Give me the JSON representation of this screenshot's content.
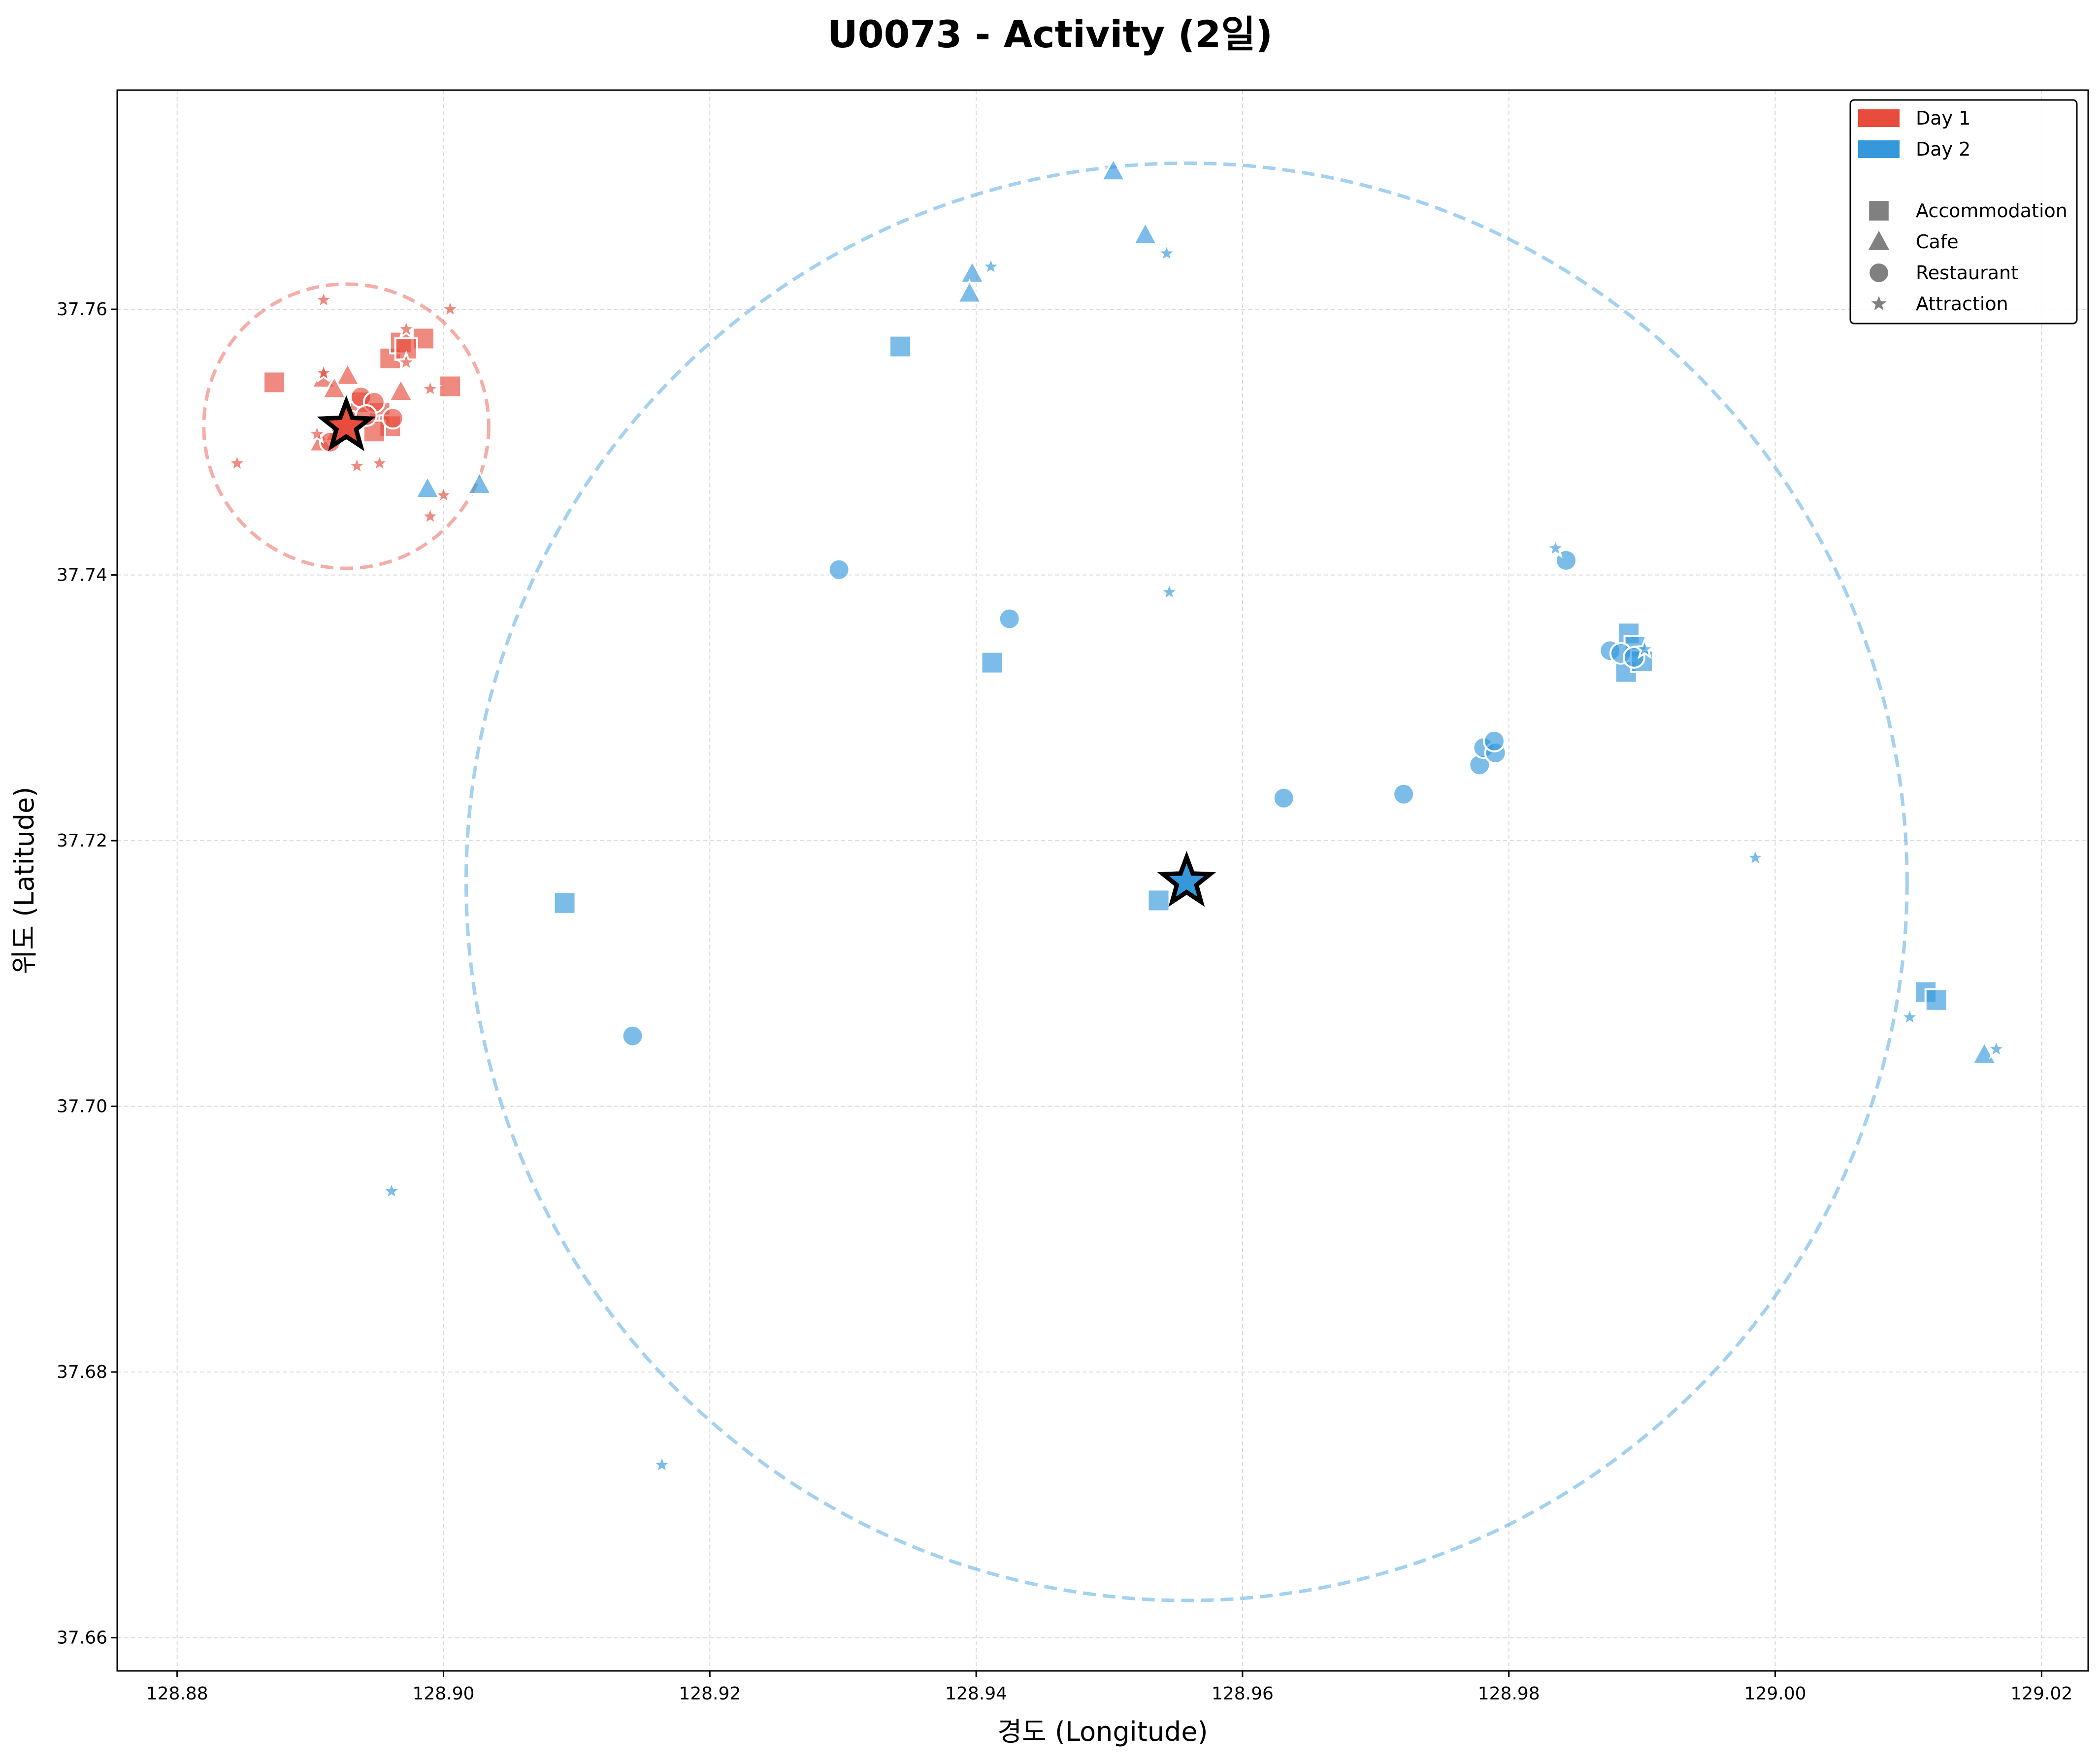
{
  "chart_data": {
    "type": "scatter",
    "title": "U0073 - Activity (2일)",
    "xlabel": "경도 (Longitude)",
    "ylabel": "위도 (Latitude)",
    "xlim": [
      128.8755,
      129.0235
    ],
    "ylim": [
      37.6575,
      37.7765
    ],
    "xticks": [
      128.88,
      128.9,
      128.92,
      128.94,
      128.96,
      128.98,
      129.0,
      129.02
    ],
    "yticks": [
      37.66,
      37.68,
      37.7,
      37.72,
      37.74,
      37.76
    ],
    "xtick_labels": [
      "128.88",
      "128.90",
      "128.92",
      "128.94",
      "128.96",
      "128.98",
      "129.00",
      "129.02"
    ],
    "ytick_labels": [
      "37.66",
      "37.68",
      "37.70",
      "37.72",
      "37.74",
      "37.76"
    ],
    "grid": true,
    "legend_position": "top-right",
    "legend": {
      "days": [
        {
          "label": "Day 1",
          "color": "#e74c3c"
        },
        {
          "label": "Day 2",
          "color": "#3498db"
        }
      ],
      "categories": [
        {
          "label": "Accommodation",
          "marker": "square"
        },
        {
          "label": "Cafe",
          "marker": "triangle"
        },
        {
          "label": "Restaurant",
          "marker": "circle"
        },
        {
          "label": "Attraction",
          "marker": "star"
        }
      ]
    },
    "series": [
      {
        "name": "Day 1",
        "color": "#e74c3c",
        "center": [
          128.8927,
          37.7512
        ],
        "radius_lon": 0.0107,
        "points": [
          {
            "x": 128.8873,
            "y": 37.7545,
            "category": "Accommodation"
          },
          {
            "x": 128.896,
            "y": 37.7563,
            "category": "Accommodation"
          },
          {
            "x": 128.8968,
            "y": 37.7575,
            "category": "Accommodation"
          },
          {
            "x": 128.8985,
            "y": 37.7578,
            "category": "Accommodation"
          },
          {
            "x": 128.8972,
            "y": 37.757,
            "category": "Accommodation"
          },
          {
            "x": 128.9005,
            "y": 37.7542,
            "category": "Accommodation"
          },
          {
            "x": 128.8938,
            "y": 37.753,
            "category": "Accommodation"
          },
          {
            "x": 128.8952,
            "y": 37.7522,
            "category": "Accommodation"
          },
          {
            "x": 128.896,
            "y": 37.7512,
            "category": "Accommodation"
          },
          {
            "x": 128.8948,
            "y": 37.7508,
            "category": "Accommodation"
          },
          {
            "x": 128.891,
            "y": 37.7548,
            "category": "Cafe"
          },
          {
            "x": 128.8928,
            "y": 37.755,
            "category": "Cafe"
          },
          {
            "x": 128.8918,
            "y": 37.754,
            "category": "Cafe"
          },
          {
            "x": 128.8968,
            "y": 37.7538,
            "category": "Cafe"
          },
          {
            "x": 128.8908,
            "y": 37.75,
            "category": "Cafe"
          },
          {
            "x": 128.892,
            "y": 37.7508,
            "category": "Cafe"
          },
          {
            "x": 128.8938,
            "y": 37.7534,
            "category": "Restaurant"
          },
          {
            "x": 128.8948,
            "y": 37.753,
            "category": "Restaurant"
          },
          {
            "x": 128.8962,
            "y": 37.7518,
            "category": "Restaurant"
          },
          {
            "x": 128.8915,
            "y": 37.75,
            "category": "Restaurant"
          },
          {
            "x": 128.893,
            "y": 37.7516,
            "category": "Restaurant"
          },
          {
            "x": 128.8942,
            "y": 37.752,
            "category": "Restaurant"
          },
          {
            "x": 128.891,
            "y": 37.7607,
            "category": "Attraction"
          },
          {
            "x": 128.9005,
            "y": 37.76,
            "category": "Attraction"
          },
          {
            "x": 128.891,
            "y": 37.7552,
            "category": "Attraction"
          },
          {
            "x": 128.8972,
            "y": 37.7585,
            "category": "Attraction"
          },
          {
            "x": 128.8972,
            "y": 37.756,
            "category": "Attraction"
          },
          {
            "x": 128.899,
            "y": 37.754,
            "category": "Attraction"
          },
          {
            "x": 128.8845,
            "y": 37.7484,
            "category": "Attraction"
          },
          {
            "x": 128.8935,
            "y": 37.7482,
            "category": "Attraction"
          },
          {
            "x": 128.8952,
            "y": 37.7484,
            "category": "Attraction"
          },
          {
            "x": 128.899,
            "y": 37.7444,
            "category": "Attraction"
          },
          {
            "x": 128.9,
            "y": 37.746,
            "category": "Attraction"
          },
          {
            "x": 128.8905,
            "y": 37.7506,
            "category": "Attraction"
          }
        ]
      },
      {
        "name": "Day 2",
        "color": "#3498db",
        "center": [
          128.9558,
          37.7169
        ],
        "radius_lon": 0.0541,
        "points": [
          {
            "x": 128.9343,
            "y": 37.7572,
            "category": "Accommodation"
          },
          {
            "x": 128.9412,
            "y": 37.7334,
            "category": "Accommodation"
          },
          {
            "x": 128.9091,
            "y": 37.7153,
            "category": "Accommodation"
          },
          {
            "x": 128.9537,
            "y": 37.7155,
            "category": "Accommodation"
          },
          {
            "x": 128.989,
            "y": 37.7356,
            "category": "Accommodation"
          },
          {
            "x": 128.9895,
            "y": 37.7346,
            "category": "Accommodation"
          },
          {
            "x": 128.9888,
            "y": 37.7327,
            "category": "Accommodation"
          },
          {
            "x": 128.99,
            "y": 37.7335,
            "category": "Accommodation"
          },
          {
            "x": 129.0113,
            "y": 37.7086,
            "category": "Accommodation"
          },
          {
            "x": 129.0121,
            "y": 37.708,
            "category": "Accommodation"
          },
          {
            "x": 128.9503,
            "y": 37.7704,
            "category": "Cafe"
          },
          {
            "x": 128.9527,
            "y": 37.7656,
            "category": "Cafe"
          },
          {
            "x": 128.9397,
            "y": 37.7627,
            "category": "Cafe"
          },
          {
            "x": 128.9395,
            "y": 37.7612,
            "category": "Cafe"
          },
          {
            "x": 128.8988,
            "y": 37.7465,
            "category": "Cafe"
          },
          {
            "x": 128.9027,
            "y": 37.7468,
            "category": "Cafe"
          },
          {
            "x": 129.0157,
            "y": 37.7039,
            "category": "Cafe"
          },
          {
            "x": 128.9297,
            "y": 37.7404,
            "category": "Restaurant"
          },
          {
            "x": 128.9425,
            "y": 37.7367,
            "category": "Restaurant"
          },
          {
            "x": 128.9843,
            "y": 37.7411,
            "category": "Restaurant"
          },
          {
            "x": 128.9631,
            "y": 37.7232,
            "category": "Restaurant"
          },
          {
            "x": 128.9721,
            "y": 37.7235,
            "category": "Restaurant"
          },
          {
            "x": 128.9778,
            "y": 37.7257,
            "category": "Restaurant"
          },
          {
            "x": 128.9781,
            "y": 37.727,
            "category": "Restaurant"
          },
          {
            "x": 128.979,
            "y": 37.7266,
            "category": "Restaurant"
          },
          {
            "x": 128.9789,
            "y": 37.7275,
            "category": "Restaurant"
          },
          {
            "x": 128.9876,
            "y": 37.7343,
            "category": "Restaurant"
          },
          {
            "x": 128.9884,
            "y": 37.7341,
            "category": "Restaurant"
          },
          {
            "x": 128.9894,
            "y": 37.7338,
            "category": "Restaurant"
          },
          {
            "x": 128.9142,
            "y": 37.7053,
            "category": "Restaurant"
          },
          {
            "x": 128.9411,
            "y": 37.7632,
            "category": "Attraction"
          },
          {
            "x": 128.9543,
            "y": 37.7642,
            "category": "Attraction"
          },
          {
            "x": 128.9545,
            "y": 37.7387,
            "category": "Attraction"
          },
          {
            "x": 128.9835,
            "y": 37.742,
            "category": "Attraction"
          },
          {
            "x": 128.9902,
            "y": 37.7344,
            "category": "Attraction"
          },
          {
            "x": 128.9985,
            "y": 37.7187,
            "category": "Attraction"
          },
          {
            "x": 129.0101,
            "y": 37.7067,
            "category": "Attraction"
          },
          {
            "x": 129.0166,
            "y": 37.7043,
            "category": "Attraction"
          },
          {
            "x": 128.8961,
            "y": 37.6936,
            "category": "Attraction"
          },
          {
            "x": 128.9164,
            "y": 37.673,
            "category": "Attraction"
          }
        ]
      }
    ]
  }
}
